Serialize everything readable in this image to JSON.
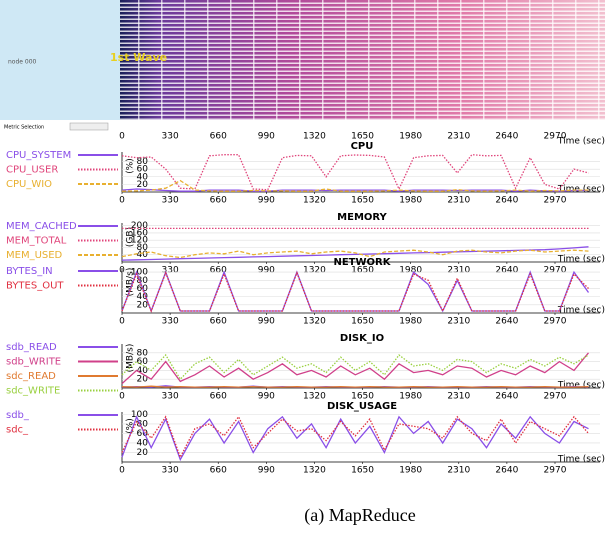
{
  "overview": {
    "node_label": "node 000",
    "wave_label": "1st Wave",
    "metric_selection": "Metric Selection",
    "xlim": [
      0,
      3280
    ],
    "xticks": [
      0,
      330,
      660,
      990,
      1320,
      1650,
      1980,
      2310,
      2640,
      2970
    ],
    "xlabel": "Time (sec)"
  },
  "chart_data": [
    {
      "type": "line",
      "title": "CPU",
      "ylabel": "(%)",
      "xlabel": "Time (sec)",
      "grid": true,
      "x": [
        0,
        100,
        200,
        300,
        400,
        500,
        600,
        700,
        800,
        900,
        1000,
        1100,
        1200,
        1300,
        1400,
        1500,
        1600,
        1700,
        1800,
        1900,
        2000,
        2100,
        2200,
        2300,
        2400,
        2500,
        2600,
        2700,
        2800,
        2900,
        3000,
        3100,
        3200
      ],
      "xlim": [
        0,
        3280
      ],
      "xticks": [
        0,
        330,
        660,
        990,
        1320,
        1650,
        1980,
        2310,
        2640,
        2970
      ],
      "ylim": [
        0,
        105
      ],
      "yticks": [
        20,
        40,
        60,
        80
      ],
      "series": [
        {
          "name": "CPU_SYSTEM",
          "color": "#8a4fe8",
          "dash": "solid",
          "values": [
            5,
            8,
            6,
            4,
            2,
            2,
            5,
            5,
            5,
            2,
            2,
            5,
            5,
            5,
            4,
            5,
            5,
            5,
            5,
            2,
            5,
            5,
            5,
            4,
            5,
            5,
            5,
            2,
            5,
            3,
            2,
            4,
            4
          ]
        },
        {
          "name": "CPU_USER",
          "color": "#e0457b",
          "dash": "dotted",
          "values": [
            95,
            90,
            92,
            60,
            10,
            8,
            95,
            98,
            98,
            8,
            6,
            90,
            96,
            95,
            40,
            95,
            97,
            96,
            92,
            8,
            90,
            95,
            96,
            50,
            98,
            95,
            96,
            10,
            90,
            20,
            8,
            60,
            50
          ]
        },
        {
          "name": "CPU_WIO",
          "color": "#e8b030",
          "dash": "dashed",
          "values": [
            2,
            3,
            5,
            10,
            30,
            5,
            3,
            2,
            2,
            4,
            3,
            3,
            2,
            2,
            8,
            2,
            2,
            2,
            3,
            5,
            3,
            2,
            2,
            6,
            3,
            2,
            3,
            5,
            2,
            4,
            3,
            5,
            5
          ]
        }
      ]
    },
    {
      "type": "line",
      "title": "MEMORY",
      "ylabel": "(GB)",
      "xlabel": "Time (sec)",
      "grid": true,
      "x": [
        0,
        100,
        200,
        300,
        400,
        500,
        600,
        700,
        800,
        900,
        1000,
        1100,
        1200,
        1300,
        1400,
        1500,
        1600,
        1700,
        1800,
        1900,
        2000,
        2100,
        2200,
        2300,
        2400,
        2500,
        2600,
        2700,
        2800,
        2900,
        3000,
        3100,
        3200
      ],
      "xlim": [
        0,
        3280
      ],
      "xticks": [
        0,
        330,
        660,
        990,
        1320,
        1650,
        1980,
        2310,
        2640,
        2970
      ],
      "ylim": [
        0,
        215
      ],
      "yticks": [
        40,
        80,
        120,
        160,
        200
      ],
      "series": [
        {
          "name": "MEM_CACHED",
          "color": "#8a4fe8",
          "dash": "solid",
          "values": [
            10,
            12,
            14,
            16,
            18,
            20,
            22,
            24,
            26,
            28,
            30,
            32,
            34,
            36,
            38,
            40,
            42,
            44,
            46,
            48,
            50,
            52,
            54,
            56,
            58,
            60,
            62,
            64,
            66,
            68,
            72,
            78,
            84
          ]
        },
        {
          "name": "MEM_TOTAL",
          "color": "#e0457b",
          "dash": "dotted",
          "values": [
            185,
            185,
            185,
            185,
            185,
            185,
            185,
            185,
            185,
            185,
            185,
            185,
            185,
            185,
            185,
            185,
            185,
            185,
            185,
            185,
            185,
            185,
            185,
            185,
            185,
            185,
            185,
            185,
            185,
            185,
            185,
            185,
            185
          ]
        },
        {
          "name": "MEM_USED",
          "color": "#e8b030",
          "dash": "dashed",
          "values": [
            30,
            45,
            55,
            35,
            25,
            40,
            50,
            45,
            60,
            40,
            50,
            55,
            60,
            45,
            55,
            60,
            50,
            30,
            55,
            60,
            65,
            55,
            40,
            60,
            65,
            55,
            50,
            60,
            65,
            55,
            60,
            65,
            60
          ]
        }
      ]
    },
    {
      "type": "line",
      "title": "NETWORK",
      "ylabel": "(MB/s)",
      "xlabel": "Time (sec)",
      "grid": true,
      "x": [
        0,
        100,
        200,
        300,
        400,
        500,
        600,
        700,
        800,
        900,
        1000,
        1100,
        1200,
        1300,
        1400,
        1500,
        1600,
        1700,
        1800,
        1900,
        2000,
        2100,
        2200,
        2300,
        2400,
        2500,
        2600,
        2700,
        2800,
        2900,
        3000,
        3100,
        3200
      ],
      "xlim": [
        0,
        3280
      ],
      "xticks": [
        0,
        330,
        660,
        990,
        1320,
        1650,
        1980,
        2310,
        2640,
        2970
      ],
      "ylim": [
        0,
        110
      ],
      "yticks": [
        20,
        40,
        60,
        80,
        100
      ],
      "series": [
        {
          "name": "BYTES_IN",
          "color": "#8a4fe8",
          "dash": "solid",
          "values": [
            5,
            100,
            5,
            100,
            5,
            5,
            5,
            100,
            5,
            5,
            5,
            5,
            100,
            5,
            5,
            5,
            5,
            5,
            5,
            5,
            100,
            70,
            5,
            80,
            5,
            5,
            5,
            5,
            100,
            5,
            5,
            100,
            50
          ]
        },
        {
          "name": "BYTES_OUT",
          "color": "#e03040",
          "dash": "dotted",
          "values": [
            5,
            95,
            5,
            98,
            5,
            5,
            5,
            95,
            5,
            5,
            5,
            5,
            98,
            5,
            5,
            5,
            5,
            5,
            5,
            5,
            95,
            80,
            5,
            85,
            5,
            5,
            5,
            5,
            95,
            5,
            5,
            95,
            60
          ]
        }
      ]
    },
    {
      "type": "line",
      "title": "DISK_IO",
      "ylabel": "(MB/s)",
      "xlabel": "Time (sec)",
      "grid": true,
      "x": [
        0,
        100,
        200,
        300,
        400,
        500,
        600,
        700,
        800,
        900,
        1000,
        1100,
        1200,
        1300,
        1400,
        1500,
        1600,
        1700,
        1800,
        1900,
        2000,
        2100,
        2200,
        2300,
        2400,
        2500,
        2600,
        2700,
        2800,
        2900,
        3000,
        3100,
        3200
      ],
      "xlim": [
        0,
        3280
      ],
      "xticks": [
        0,
        330,
        660,
        990,
        1320,
        1650,
        1980,
        2310,
        2640,
        2970
      ],
      "ylim": [
        0,
        100
      ],
      "yticks": [
        20,
        40,
        60,
        80
      ],
      "series": [
        {
          "name": "sdb_READ",
          "color": "#8a4fe8",
          "dash": "solid",
          "values": [
            2,
            3,
            2,
            5,
            2,
            2,
            3,
            2,
            2,
            4,
            2,
            3,
            2,
            2,
            3,
            2,
            2,
            2,
            3,
            2,
            2,
            3,
            2,
            2,
            2,
            3,
            2,
            2,
            3,
            2,
            2,
            3,
            2
          ]
        },
        {
          "name": "sdb_WRITE",
          "color": "#d0408a",
          "dash": "solid",
          "values": [
            10,
            40,
            20,
            60,
            15,
            30,
            50,
            25,
            45,
            20,
            35,
            55,
            30,
            40,
            25,
            50,
            30,
            45,
            20,
            55,
            35,
            40,
            30,
            50,
            45,
            25,
            40,
            30,
            50,
            35,
            60,
            40,
            80
          ]
        },
        {
          "name": "sdc_READ",
          "color": "#e07a30",
          "dash": "solid",
          "values": [
            3,
            2,
            4,
            2,
            3,
            2,
            2,
            3,
            2,
            3,
            2,
            2,
            3,
            2,
            2,
            3,
            2,
            3,
            2,
            2,
            3,
            2,
            2,
            3,
            2,
            2,
            3,
            2,
            2,
            3,
            2,
            2,
            3
          ]
        },
        {
          "name": "sdc_WRITE",
          "color": "#9ad040",
          "dash": "dotted",
          "values": [
            30,
            60,
            40,
            75,
            20,
            55,
            70,
            35,
            65,
            30,
            50,
            70,
            45,
            55,
            35,
            70,
            40,
            60,
            30,
            75,
            50,
            55,
            40,
            65,
            60,
            35,
            55,
            45,
            65,
            50,
            70,
            55,
            75
          ]
        }
      ]
    },
    {
      "type": "line",
      "title": "DISK_USAGE",
      "ylabel": "(%)",
      "xlabel": "Time (sec)",
      "grid": true,
      "x": [
        0,
        100,
        200,
        300,
        400,
        500,
        600,
        700,
        800,
        900,
        1000,
        1100,
        1200,
        1300,
        1400,
        1500,
        1600,
        1700,
        1800,
        1900,
        2000,
        2100,
        2200,
        2300,
        2400,
        2500,
        2600,
        2700,
        2800,
        2900,
        3000,
        3100,
        3200
      ],
      "xlim": [
        0,
        3280
      ],
      "xticks": [
        0,
        330,
        660,
        990,
        1320,
        1650,
        1980,
        2310,
        2640,
        2970
      ],
      "ylim": [
        0,
        105
      ],
      "yticks": [
        20,
        40,
        60,
        80,
        100
      ],
      "series": [
        {
          "name": "sdb_",
          "color": "#8a4fe8",
          "dash": "solid",
          "values": [
            10,
            95,
            30,
            90,
            5,
            60,
            90,
            40,
            85,
            20,
            70,
            95,
            50,
            80,
            30,
            90,
            40,
            75,
            20,
            95,
            60,
            85,
            40,
            90,
            70,
            30,
            80,
            50,
            95,
            60,
            40,
            85,
            70
          ]
        },
        {
          "name": "sdc_",
          "color": "#e03040",
          "dash": "dotted",
          "values": [
            20,
            85,
            50,
            95,
            10,
            70,
            80,
            55,
            95,
            30,
            60,
            90,
            65,
            70,
            45,
            85,
            55,
            90,
            25,
            80,
            75,
            70,
            50,
            95,
            60,
            45,
            90,
            40,
            85,
            70,
            55,
            95,
            60
          ]
        }
      ]
    }
  ],
  "caption": "(a) MapReduce"
}
